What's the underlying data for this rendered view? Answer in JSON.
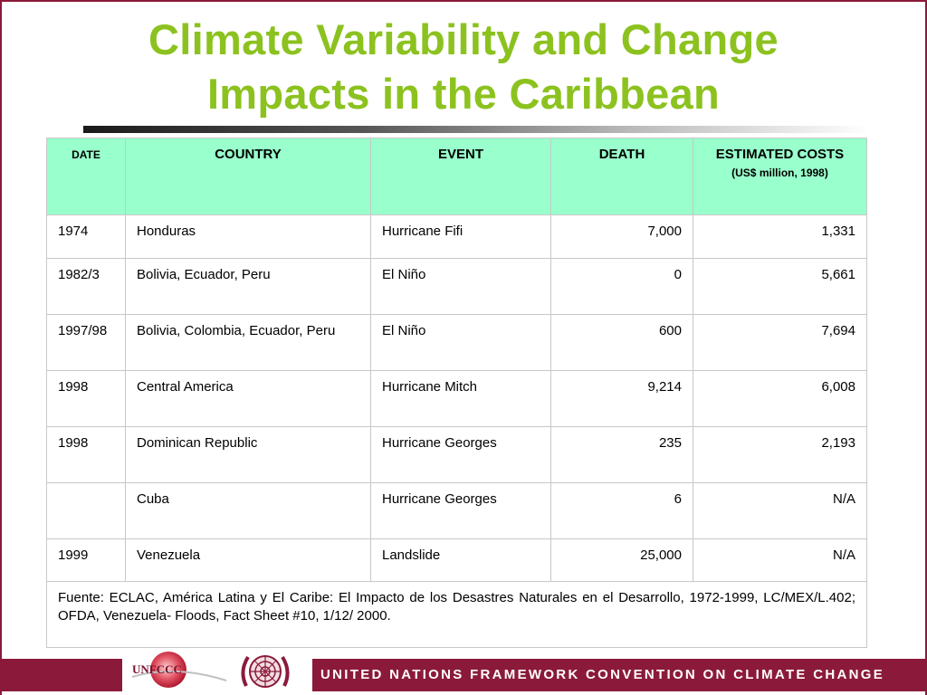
{
  "slide": {
    "title_line1": "Climate Variability and Change",
    "title_line2": "Impacts in the Caribbean"
  },
  "table": {
    "headers": {
      "date": "DATE",
      "country": "COUNTRY",
      "event": "EVENT",
      "death": "DEATH",
      "costs": "ESTIMATED COSTS",
      "costs_sub": "(US$ million, 1998)"
    },
    "rows": [
      {
        "date": "1974",
        "country": "Honduras",
        "event": "Hurricane Fifi",
        "death": "7,000",
        "costs": "1,331"
      },
      {
        "date": "1982/3",
        "country": "Bolivia, Ecuador, Peru",
        "event": "El Niño",
        "death": "0",
        "costs": "5,661"
      },
      {
        "date": "1997/98",
        "country": "Bolivia, Colombia, Ecuador, Peru",
        "event": "El Niño",
        "death": "600",
        "costs": "7,694"
      },
      {
        "date": "1998",
        "country": "Central America",
        "event": "Hurricane Mitch",
        "death": "9,214",
        "costs": "6,008"
      },
      {
        "date": "1998",
        "country": "Dominican Republic",
        "event": "Hurricane Georges",
        "death": "235",
        "costs": "2,193"
      },
      {
        "date": "",
        "country": "Cuba",
        "event": "Hurricane Georges",
        "death": "6",
        "costs": "N/A"
      },
      {
        "date": "1999",
        "country": "Venezuela",
        "event": "Landslide",
        "death": "25,000",
        "costs": "N/A"
      }
    ],
    "source": "Fuente: ECLAC, América Latina y El Caribe: El Impacto de los Desastres Naturales en el Desarrollo, 1972-1999, LC/MEX/L.402; OFDA, Venezuela- Floods, Fact Sheet #10, 1/12/ 2000."
  },
  "footer": {
    "logo_text": "UNFCCC",
    "banner": "UNITED NATIONS FRAMEWORK CONVENTION ON CLIMATE CHANGE"
  },
  "colors": {
    "title": "#8cc21f",
    "header_bg": "#99ffcc",
    "brand": "#8b1a3a"
  }
}
